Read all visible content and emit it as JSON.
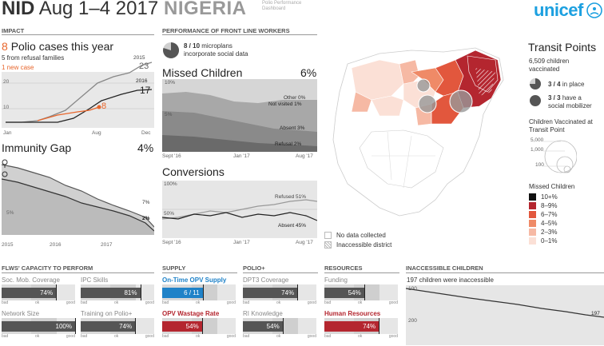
{
  "header": {
    "nid": "NID",
    "dates": "Aug 1–4 2017",
    "country": "NIGERIA",
    "subtitle": "Polio Performance Dashboard",
    "logo": "unicef"
  },
  "impact": {
    "section": "IMPACT",
    "cases_number": "8",
    "cases_title": "Polio cases this year",
    "refusal_text": "5 from refusal families",
    "new_case_text": "1 new case",
    "y_ticks": [
      "20",
      "10"
    ],
    "x_ticks": [
      "Jan",
      "Aug",
      "Dec"
    ],
    "series_labels": {
      "y2015": "2015",
      "v2015": "23",
      "y2016": "2016",
      "v2016": "17",
      "v2017": "8"
    }
  },
  "immunity": {
    "title": "Immunity Gap",
    "pct": "4%",
    "lab1": "7%",
    "lab2": "2%",
    "lab_5": "5%",
    "x_ticks": [
      "2015",
      "2016",
      "2017"
    ]
  },
  "flw": {
    "section": "PERFORMANCE OF FRONT LINE WORKERS",
    "microplans_bold": "8 / 10",
    "microplans_text": "microplans",
    "microplans_line2": "incorporate social data",
    "missed_title": "Missed Children",
    "missed_pct": "6%",
    "missed_labels": {
      "tick10": "10%",
      "tick5": "5%",
      "other": "Other 0%",
      "notvisited": "Not visited 1%",
      "absent": "Absent 3%",
      "refusal": "Refusal 2%"
    },
    "conv_title": "Conversions",
    "conv_labels": {
      "tick100": "100%",
      "tick50": "50%",
      "refused": "Refused 51%",
      "absent": "Absent 45%"
    },
    "x_ticks": [
      "Sept '16",
      "Jan '17",
      "Aug '17"
    ]
  },
  "map": {
    "legend_nodata": "No data collected",
    "legend_inaccessible": "Inaccessible district"
  },
  "transit": {
    "title": "Transit Points",
    "children": "6,509 children",
    "vaccinated": "vaccinated",
    "inplace_bold": "3 / 4",
    "inplace_text": "in place",
    "mobilizer_bold": "3 / 3",
    "mobilizer_text": "have a",
    "mobilizer_line2": "social mobilizer",
    "cv_title": "Children Vaccinated at",
    "cv_title2": "Transit Point",
    "bubbles": [
      "5,000",
      "1,000",
      "100"
    ],
    "missed_title": "Missed Children",
    "legend": [
      {
        "label": "10+%",
        "color": "#111111"
      },
      {
        "label": "8–9%",
        "color": "#b4262f"
      },
      {
        "label": "6–7%",
        "color": "#e2573d"
      },
      {
        "label": "4–5%",
        "color": "#ef8a67"
      },
      {
        "label": "2–3%",
        "color": "#f6b9a4"
      },
      {
        "label": "0–1%",
        "color": "#fbe0d6"
      }
    ]
  },
  "scale": {
    "bad": "bad",
    "ok": "ok",
    "good": "good"
  },
  "capacity": {
    "section": "FLWS' CAPACITY TO PERFORM",
    "soc_label": "Soc. Mob. Coverage",
    "soc_val": "74%",
    "soc_pct": 74,
    "ipc_label": "IPC Skills",
    "ipc_val": "81%",
    "ipc_pct": 81,
    "net_label": "Network Size",
    "net_val": "100%",
    "net_pct": 100,
    "train_label": "Training on Polio+",
    "train_val": "74%",
    "train_pct": 74
  },
  "supply": {
    "section": "SUPPLY",
    "ontime_label": "On-Time OPV Supply",
    "ontime_val": "6 / 11",
    "ontime_pct": 55,
    "wastage_label": "OPV Wastage Rate",
    "wastage_val": "54%",
    "wastage_pct": 54
  },
  "polioplus": {
    "section": "POLIO+",
    "dpt_label": "DPT3 Coverage",
    "dpt_val": "74%",
    "dpt_pct": 74,
    "ri_label": "RI Knowledge",
    "ri_val": "54%",
    "ri_pct": 54
  },
  "resources": {
    "section": "RESOURCES",
    "funding_label": "Funding",
    "funding_val": "54%",
    "funding_pct": 54,
    "hr_label": "Human Resources",
    "hr_val": "74%",
    "hr_pct": 74
  },
  "inaccessible": {
    "section": "INACCESSIBLE CHILDREN",
    "text": "197 children were inaccessible",
    "tick100": "100",
    "tick200": "200",
    "end": "197"
  }
}
